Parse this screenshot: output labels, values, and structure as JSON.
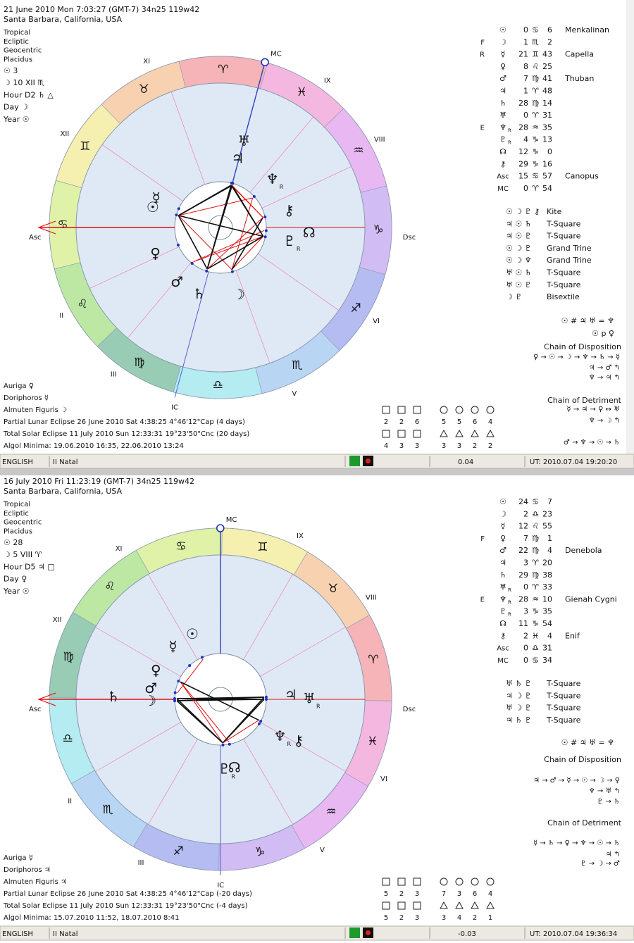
{
  "panels": [
    {
      "header": [
        "21 June 2010  Mon   7:03:27 (GMT-7) 34n25  119w42",
        "Santa Barbara, California, USA"
      ],
      "settings": [
        "Tropical",
        "Ecliptic",
        "Geocentric",
        "Placidus",
        "☉  3",
        "☽  10 XII ♏",
        "Hour D2 ♄ △",
        "Day ☽",
        "Year ☉"
      ],
      "signs": [
        "♈",
        "♉",
        "♊",
        "♋",
        "♌",
        "♍",
        "♎",
        "♏",
        "♐",
        "♑",
        "♒",
        "♓"
      ],
      "house_numerals": [
        null,
        "II",
        "III",
        null,
        "V",
        "VI",
        null,
        "VIII",
        "IX",
        null,
        "XI",
        "XII"
      ],
      "angles": {
        "asc": "Asc",
        "dsc": "Dsc",
        "mc": "MC",
        "ic": "IC"
      },
      "planets": [
        {
          "glyph": "☉",
          "deg": 0,
          "sign": "♋",
          "min": 6,
          "star": "Menkalinan"
        },
        {
          "flag": "F",
          "glyph": "☽",
          "deg": 1,
          "sign": "♏",
          "min": 2
        },
        {
          "flag": "R",
          "glyph": "☿",
          "deg": 21,
          "sign": "♊",
          "min": 43,
          "star": "Capella"
        },
        {
          "glyph": "♀",
          "deg": 8,
          "sign": "♌",
          "min": 25
        },
        {
          "glyph": "♂",
          "deg": 7,
          "sign": "♍",
          "min": 41,
          "star": "Thuban"
        },
        {
          "glyph": "♃",
          "deg": 1,
          "sign": "♈",
          "min": 48
        },
        {
          "glyph": "♄",
          "deg": 28,
          "sign": "♍",
          "min": 14
        },
        {
          "glyph": "♅",
          "deg": 0,
          "sign": "♈",
          "min": 31
        },
        {
          "flag": "E",
          "glyph": "♆",
          "retro": "R",
          "deg": 28,
          "sign": "♒",
          "min": 35
        },
        {
          "glyph": "♇",
          "retro": "R",
          "deg": 4,
          "sign": "♑",
          "min": 13
        },
        {
          "glyph": "☊",
          "deg": 12,
          "sign": "♑",
          "min": 0
        },
        {
          "glyph": "⚷",
          "deg": 29,
          "sign": "♑",
          "min": 16
        },
        {
          "glyph": "Asc",
          "deg": 15,
          "sign": "♋",
          "min": 57,
          "star": "Canopus"
        },
        {
          "glyph": "MC",
          "deg": 0,
          "sign": "♈",
          "min": 54
        }
      ],
      "aspects": [
        {
          "glyphs": "☉ ☽ ♇ ⚷",
          "name": "Kite"
        },
        {
          "glyphs": "♃ ☉ ♄",
          "name": "T-Square"
        },
        {
          "glyphs": "♃ ☉ ♇",
          "name": "T-Square"
        },
        {
          "glyphs": "☉ ☽ ♇",
          "name": "Grand Trine"
        },
        {
          "glyphs": "☉ ☽ ♆",
          "name": "Grand Trine"
        },
        {
          "glyphs": "♅ ☉ ♄",
          "name": "T-Square"
        },
        {
          "glyphs": "♅ ☉ ♇",
          "name": "T-Square"
        },
        {
          "glyphs": "☽ ♇",
          "name": "Bisextile"
        }
      ],
      "midpoint": "☉ # ♃ ♅ = ♆",
      "parallel": "☉ p ♀",
      "disposition": {
        "title": "Chain of Disposition",
        "lines": [
          "♀ → ☉ → ☽ → ♆ → ♄ → ☿",
          "♃ → ♂ ↰",
          "♆ → ♃ ↰"
        ]
      },
      "detriment": {
        "title": "Chain of Detriment",
        "lines": [
          "☿ → ♃ → ♀ ↔ ♅",
          "♆ → ☽ ↰",
          "♂ → ♆ → ☉ → ♄"
        ]
      },
      "footer": [
        "Auriga  ♀",
        "Doriphoros  ☿",
        "Almuten Figuris  ☽",
        "Partial Lunar Eclipse 26 June 2010 Sat  4:38:25  4°46'12\"Cap (4 days)",
        "Total Solar Eclipse 11 July 2010 Sun 12:33:31 19°23'50\"Cnc (20 days)",
        "Algol Minima: 19.06.2010 16:35,  22.06.2010 13:24"
      ],
      "elements": [
        [
          2,
          2,
          6,
          5,
          5,
          6,
          4
        ],
        [
          4,
          3,
          3,
          3,
          3,
          2,
          2
        ]
      ],
      "status": [
        "ENGLISH",
        "II Natal",
        "0.04",
        "UT: 2010.07.04 19:20:20"
      ]
    },
    {
      "header": [
        "16 July 2010  Fri  11:23:19 (GMT-7) 34n25  119w42",
        "Santa Barbara, California, USA"
      ],
      "settings": [
        "Tropical",
        "Ecliptic",
        "Geocentric",
        "Placidus",
        "☉  28",
        "☽  5 VIII ♈",
        "Hour D5 ♃ □",
        "Day ♀",
        "Year ☉"
      ],
      "signs": [
        "♈",
        "♉",
        "♊",
        "♋",
        "♌",
        "♍",
        "♎",
        "♏",
        "♐",
        "♑",
        "♒",
        "♓"
      ],
      "house_numerals": [
        null,
        "II",
        "III",
        null,
        "V",
        "VI",
        null,
        "VIII",
        "IX",
        null,
        "XI",
        "XII"
      ],
      "angles": {
        "asc": "Asc",
        "dsc": "Dsc",
        "mc": "MC",
        "ic": "IC"
      },
      "planets": [
        {
          "glyph": "☉",
          "deg": 24,
          "sign": "♋",
          "min": 7
        },
        {
          "glyph": "☽",
          "deg": 2,
          "sign": "♎",
          "min": 23
        },
        {
          "glyph": "☿",
          "deg": 12,
          "sign": "♌",
          "min": 55
        },
        {
          "flag": "F",
          "glyph": "♀",
          "deg": 7,
          "sign": "♍",
          "min": 1
        },
        {
          "glyph": "♂",
          "deg": 22,
          "sign": "♍",
          "min": 4,
          "star": "Denebola"
        },
        {
          "glyph": "♃",
          "deg": 3,
          "sign": "♈",
          "min": 20
        },
        {
          "glyph": "♄",
          "deg": 29,
          "sign": "♍",
          "min": 38
        },
        {
          "glyph": "♅",
          "retro": "R",
          "deg": 0,
          "sign": "♈",
          "min": 33
        },
        {
          "flag": "E",
          "glyph": "♆",
          "retro": "R",
          "deg": 28,
          "sign": "♒",
          "min": 10,
          "star": "Gienah Cygni"
        },
        {
          "glyph": "♇",
          "retro": "R",
          "deg": 3,
          "sign": "♑",
          "min": 35
        },
        {
          "glyph": "☊",
          "deg": 11,
          "sign": "♑",
          "min": 54
        },
        {
          "glyph": "⚷",
          "deg": 2,
          "sign": "♓",
          "min": 4,
          "star": "Enif"
        },
        {
          "glyph": "Asc",
          "deg": 0,
          "sign": "♎",
          "min": 31
        },
        {
          "glyph": "MC",
          "deg": 0,
          "sign": "♋",
          "min": 34
        }
      ],
      "aspects": [
        {
          "glyphs": "♅ ♄ ♇",
          "name": "T-Square"
        },
        {
          "glyphs": "♃ ☽ ♇",
          "name": "T-Square"
        },
        {
          "glyphs": "♅ ☽ ♇",
          "name": "T-Square"
        },
        {
          "glyphs": "♃ ♄ ♇",
          "name": "T-Square"
        }
      ],
      "midpoint": "☉ # ♃ ♅ = ♆",
      "disposition": {
        "title": "Chain of Disposition",
        "lines": [
          "♃ → ♂ → ☿ → ☉ → ☽ → ♀",
          "♆ → ♅ ↰",
          "♇ → ♄"
        ]
      },
      "detriment": {
        "title": "Chain of Detriment",
        "lines": [
          "☿ → ♄ → ♀ → ♆ → ☉ → ♄",
          "♃ ↰",
          "♇ → ☽ → ♂"
        ]
      },
      "footer": [
        "Auriga  ☿",
        "Doriphoros  ♃",
        "Almuten Figuris  ♃",
        "Partial Lunar Eclipse 26 June 2010 Sat  4:38:25  4°46'12\"Cap (-20 days)",
        "Total Solar Eclipse 11 July 2010 Sun 12:33:31 19°23'50\"Cnc (-4 days)",
        "Algol Minima: 15.07.2010 11:52,  18.07.2010  8:41"
      ],
      "elements": [
        [
          5,
          2,
          3,
          7,
          3,
          6,
          4
        ],
        [
          5,
          2,
          3,
          3,
          4,
          2,
          1
        ]
      ],
      "status": [
        "ENGLISH",
        "II Natal",
        "-0.03",
        "UT: 2010.07.04 19:36:34"
      ]
    }
  ]
}
